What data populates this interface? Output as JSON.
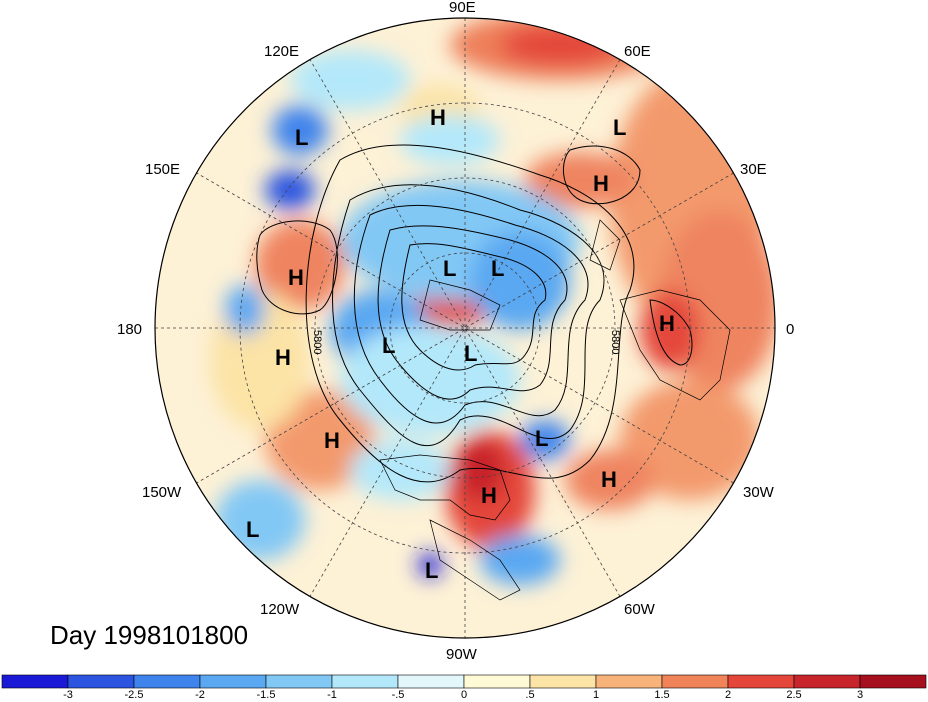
{
  "lon_labels": {
    "e90": "90E",
    "e60": "60E",
    "e120": "120E",
    "e30": "30E",
    "e150": "150E",
    "zero": "0",
    "w180": "180",
    "w30": "30W",
    "w150": "150W",
    "w60": "60W",
    "w120": "120W",
    "w90": "90W"
  },
  "contour_label": "5800",
  "contour_label2": "5800",
  "markers": [
    "H",
    "L"
  ],
  "day_label": "Day 1998101800",
  "colorbar": {
    "labels": [
      "-3",
      "-2.5",
      "-2",
      "-1.5",
      "-1",
      "-.5",
      "0",
      ".5",
      "1",
      "1.5",
      "2",
      "2.5",
      "3"
    ],
    "colors": [
      "#1a1ad6",
      "#2b55e0",
      "#3f84ec",
      "#5aa8f2",
      "#82c8f5",
      "#b3e8fa",
      "#e3f7fb",
      "#fefad6",
      "#fce3a6",
      "#f8b37a",
      "#f08458",
      "#e4463a",
      "#c8242c",
      "#a50f1e"
    ]
  },
  "colors": {
    "background": "#ffffff",
    "map_base": "#fdf1d6"
  }
}
